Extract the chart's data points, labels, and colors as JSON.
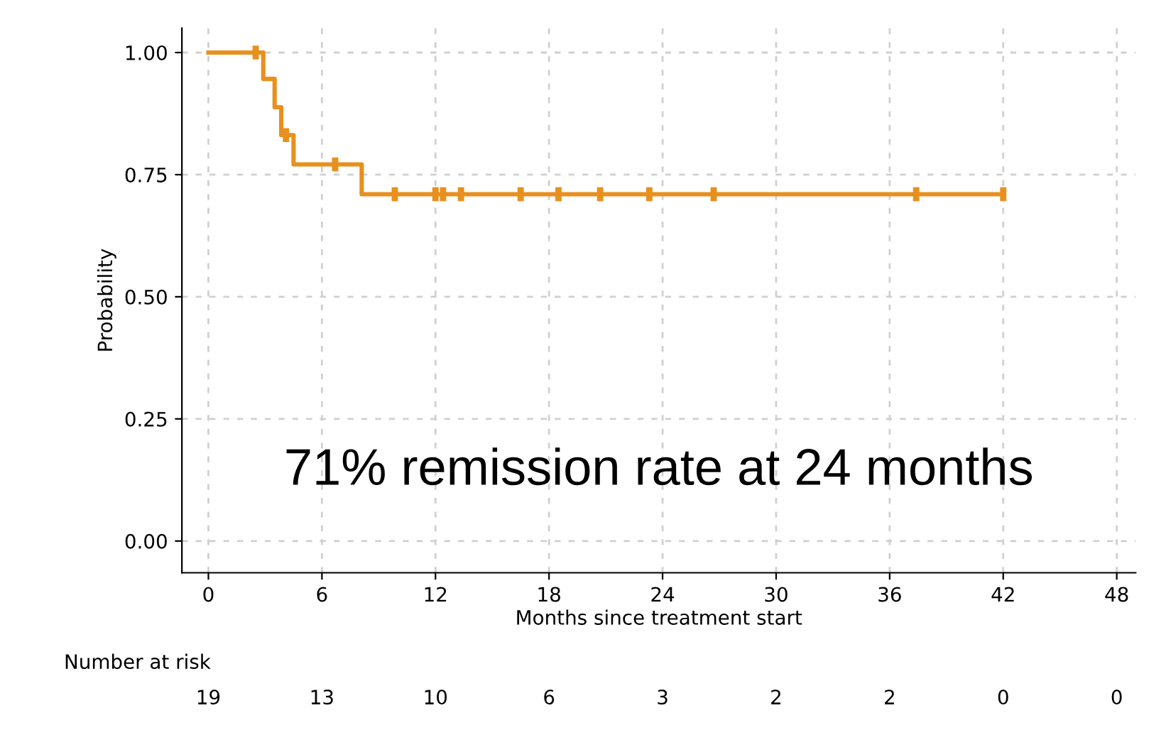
{
  "chart_data": {
    "type": "step",
    "xlabel": "Months since treatment start",
    "ylabel": "Probability",
    "xlim": [
      -1.4,
      49
    ],
    "xticks": [
      0,
      6,
      12,
      18,
      24,
      30,
      36,
      42,
      48
    ],
    "ylim": [
      -0.065,
      1.05
    ],
    "yticks": [
      {
        "value": 0,
        "label": "0.00"
      },
      {
        "value": 0.25,
        "label": "0.25"
      },
      {
        "value": 0.5,
        "label": "0.50"
      },
      {
        "value": 0.75,
        "label": "0.75"
      },
      {
        "value": 1,
        "label": "1.00"
      }
    ],
    "grid": true,
    "series": [
      {
        "color": "#e8901e",
        "x": [
          0,
          2.9,
          3.5,
          3.85,
          4.5,
          8.1,
          42
        ],
        "values": [
          1,
          0.946,
          0.888,
          0.831,
          0.771,
          0.71,
          0.71
        ]
      },
      {
        "type": "scatter",
        "color": "#e8901e",
        "x": [
          2.5,
          4.1,
          6.7,
          9.85,
          12.0,
          12.4,
          13.35,
          16.5,
          18.5,
          20.7,
          23.3,
          26.7,
          37.4,
          42
        ],
        "values": [
          1,
          0.831,
          0.771,
          0.71,
          0.71,
          0.71,
          0.71,
          0.71,
          0.71,
          0.71,
          0.71,
          0.71,
          0.71,
          0.71
        ]
      }
    ],
    "annotations": [
      "71% remission rate at 24 months",
      "Number at risk",
      "19",
      "13",
      "10",
      "6",
      "3",
      "2",
      "2",
      "0",
      "0"
    ]
  }
}
